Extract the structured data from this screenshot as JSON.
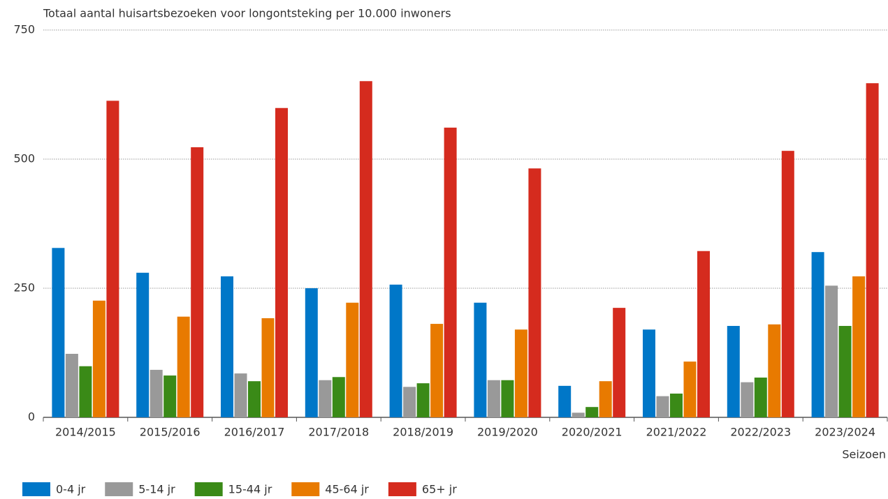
{
  "chart_data": {
    "type": "bar",
    "title": "Totaal aantal huisartsbezoeken voor longontsteking per 10.000 inwoners",
    "x_label": "Seizoen",
    "categories": [
      "2014/2015",
      "2015/2016",
      "2016/2017",
      "2017/2018",
      "2018/2019",
      "2019/2020",
      "2020/2021",
      "2021/2022",
      "2022/2023",
      "2023/2024"
    ],
    "series": [
      {
        "name": "0-4 jr",
        "color": "#0077c8",
        "values": [
          328,
          280,
          273,
          250,
          257,
          222,
          61,
          170,
          177,
          320
        ]
      },
      {
        "name": "5-14 jr",
        "color": "#999999",
        "values": [
          123,
          92,
          85,
          72,
          59,
          72,
          9,
          41,
          68,
          255
        ]
      },
      {
        "name": "15-44 jr",
        "color": "#3a8a17",
        "values": [
          99,
          81,
          70,
          78,
          66,
          72,
          20,
          46,
          77,
          177
        ]
      },
      {
        "name": "45-64 jr",
        "color": "#e87a00",
        "values": [
          226,
          195,
          192,
          222,
          181,
          170,
          70,
          108,
          180,
          273
        ]
      },
      {
        "name": "65+ jr",
        "color": "#d52b1e",
        "values": [
          613,
          523,
          599,
          651,
          561,
          482,
          212,
          322,
          516,
          647
        ]
      }
    ],
    "ylim": [
      0,
      750
    ],
    "yticks": [
      0,
      250,
      500,
      750
    ],
    "grid": true,
    "legend": "bottom"
  }
}
